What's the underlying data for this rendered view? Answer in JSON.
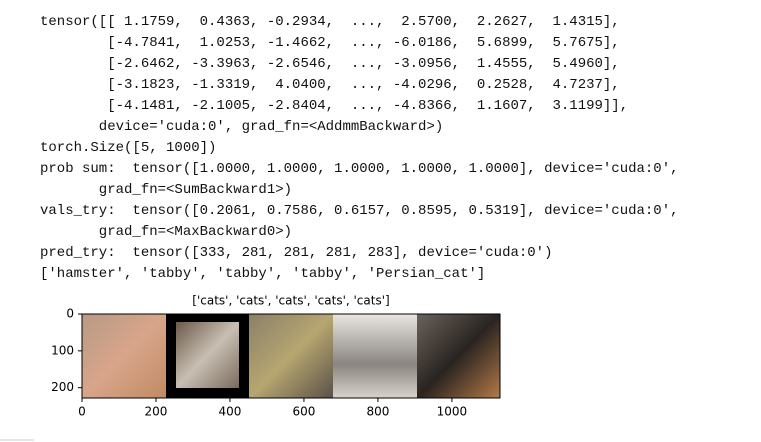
{
  "output_lines": [
    "tensor([[ 1.1759,  0.4363, -0.2934,  ...,  2.5700,  2.2627,  1.4315],",
    "        [-4.7841,  1.0253, -1.4662,  ..., -6.0186,  5.6899,  5.7675],",
    "        [-2.6462, -3.3963, -2.6546,  ..., -3.0956,  1.4555,  5.4960],",
    "        [-3.1823, -1.3319,  4.0400,  ..., -4.0296,  0.2528,  4.7237],",
    "        [-4.1481, -2.1005, -2.8404,  ..., -4.8366,  1.1607,  3.1199]],",
    "       device='cuda:0', grad_fn=<AddmmBackward>)",
    "torch.Size([5, 1000])",
    "prob sum:  tensor([1.0000, 1.0000, 1.0000, 1.0000, 1.0000], device='cuda:0',",
    "       grad_fn=<SumBackward1>)",
    "vals_try:  tensor([0.2061, 0.7586, 0.6157, 0.8595, 0.5319], device='cuda:0',",
    "       grad_fn=<MaxBackward0>)",
    "pred_try:  tensor([333, 281, 281, 281, 283], device='cuda:0')",
    "['hamster', 'tabby', 'tabby', 'tabby', 'Persian_cat']"
  ],
  "figure": {
    "title": "['cats', 'cats', 'cats', 'cats', 'cats']",
    "xlim": [
      0,
      1130
    ],
    "ylim": [
      228,
      0
    ],
    "xticks": [
      0,
      200,
      400,
      600,
      800,
      1000
    ],
    "yticks": [
      0,
      100,
      200
    ]
  }
}
